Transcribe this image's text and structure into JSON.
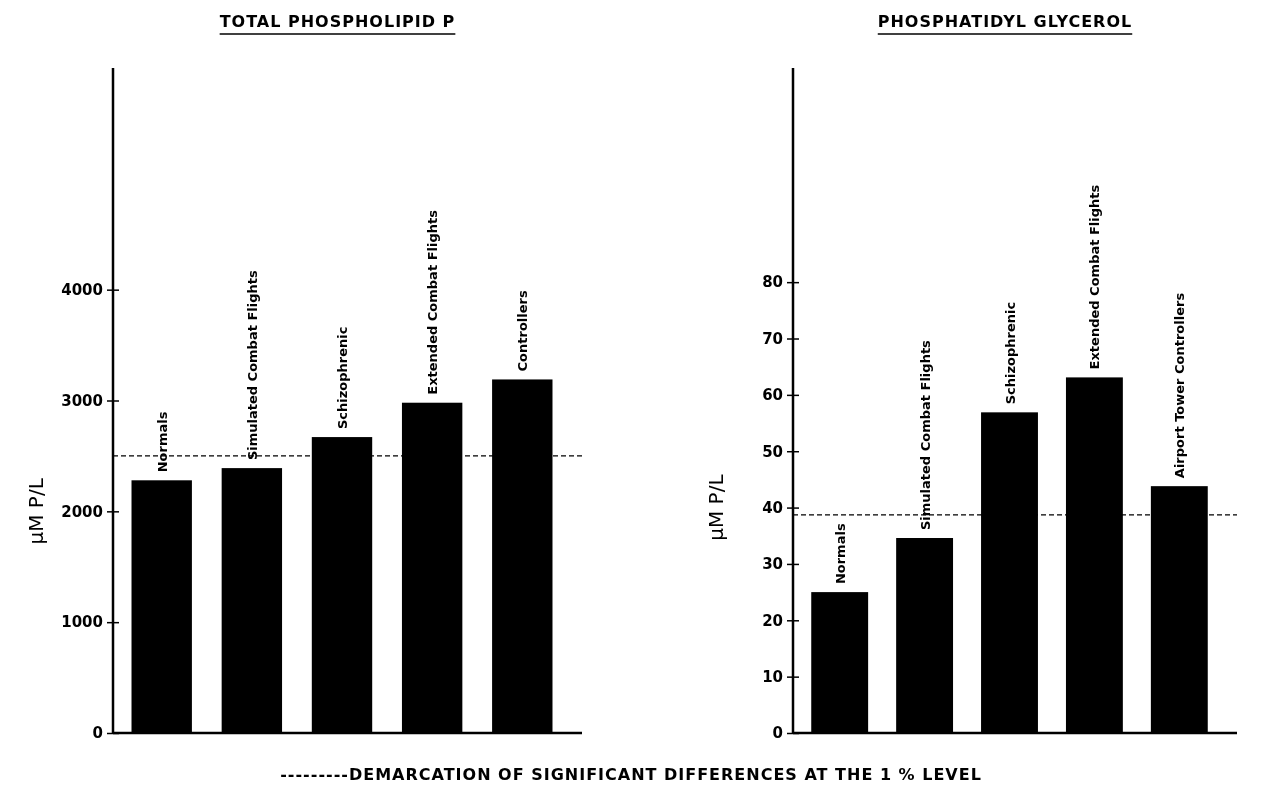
{
  "chart_data": [
    {
      "type": "bar",
      "title": "TOTAL PHOSPHOLIPID P",
      "ylabel": "μM P/L",
      "categories": [
        "Normals",
        "Simulated Combat Flights",
        "Schizophrenic",
        "Extended Combat Flights",
        "Controllers"
      ],
      "values": [
        2280,
        2390,
        2670,
        2980,
        3190
      ],
      "color": "#000000",
      "ylim": [
        0,
        6000
      ],
      "yticks": [
        0,
        1000,
        2000,
        3000,
        4000
      ],
      "grid": false,
      "tick_labels": "y",
      "ref_lines": [
        {
          "axis": "y",
          "value": 2500,
          "line_style": "dashed"
        }
      ],
      "annotations": [
        "---------DEMARCATION OF SIGNIFICANT DIFFERENCES AT THE 1 % LEVEL"
      ]
    },
    {
      "type": "bar",
      "title": "PHOSPHATIDYL GLYCEROL",
      "ylabel": "μM P/L",
      "categories": [
        "Normals",
        "Simulated Combat Flights",
        "Schizophrenic",
        "Extended Combat Flights",
        "Airport Tower Controllers"
      ],
      "values": [
        25,
        34.6,
        56.9,
        63.1,
        43.8
      ],
      "color": "#000000",
      "ylim": [
        0,
        118
      ],
      "yticks": [
        0,
        10,
        20,
        30,
        40,
        50,
        60,
        70,
        80
      ],
      "grid": false,
      "tick_labels": "y",
      "ref_lines": [
        {
          "axis": "y",
          "value": 38.7,
          "line_style": "dashed"
        }
      ]
    }
  ]
}
